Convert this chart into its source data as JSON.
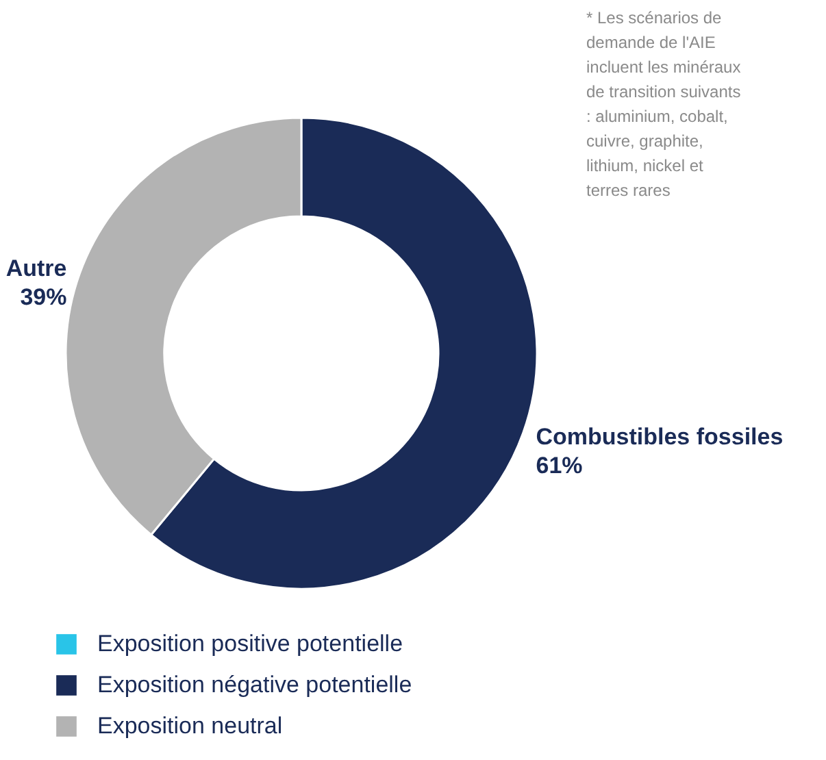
{
  "chart_data": {
    "type": "donut",
    "categories": [
      "Exposition positive potentielle",
      "Exposition négative potentielle",
      "Exposition neutral"
    ],
    "values": [
      null,
      61,
      39
    ],
    "colors": [
      "#29c4e8",
      "#1a2b57",
      "#b3b3b3"
    ],
    "value_labels": [
      null,
      "61%",
      "39%"
    ],
    "legend": "bottom left",
    "annotations": [
      {
        "text": "Combustibles fossiles",
        "x": "Exposition négative potentielle"
      },
      {
        "text": "Autre",
        "x": "Exposition neutral"
      },
      "* Les scénarios de demande de l'AIE incluent les minéraux de transition suivants : aluminium, cobalt, cuivre, graphite, lithium, nickel et terres rares"
    ]
  }
}
